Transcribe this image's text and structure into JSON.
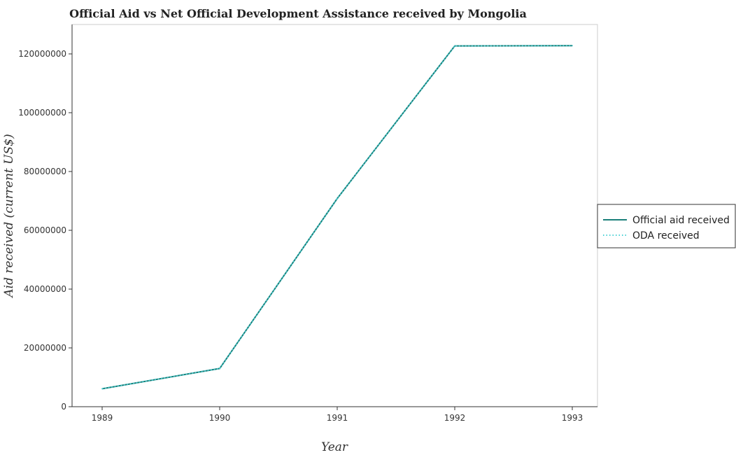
{
  "chart_data": {
    "type": "line",
    "title": "Official Aid vs Net Official Development Assistance received by Mongolia",
    "xlabel": "Year",
    "ylabel": "Aid received (current US$)",
    "categories": [
      "1989",
      "1990",
      "1991",
      "1992",
      "1993"
    ],
    "ylim": [
      0,
      130000000
    ],
    "yticks": [
      0,
      20000000,
      40000000,
      60000000,
      80000000,
      100000000,
      120000000
    ],
    "ytick_labels": [
      "0",
      "20000000",
      "40000000",
      "60000000",
      "80000000",
      "100000000",
      "120000000"
    ],
    "grid": false,
    "legend_position": "right",
    "series": [
      {
        "name": "Official aid received",
        "values": [
          6100000,
          13000000,
          70800000,
          122700000,
          122800000
        ],
        "color": "#1a7f7a",
        "style": "solid"
      },
      {
        "name": "ODA received",
        "values": [
          6100000,
          13000000,
          70800000,
          122700000,
          122800000
        ],
        "color": "#4dd2d6",
        "style": "dotted"
      }
    ]
  }
}
